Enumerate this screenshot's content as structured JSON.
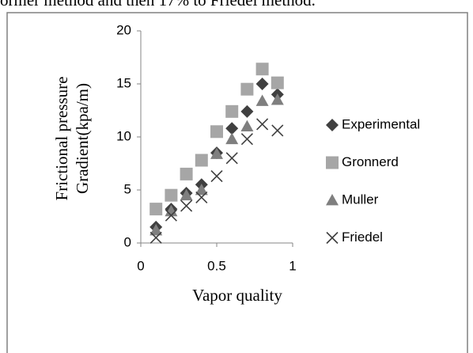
{
  "caption": "ormer method and then 17% to Friedel method.",
  "chart_data": {
    "type": "scatter",
    "ylabel": [
      "Frictional pressure",
      "Gradient(kpa/m)"
    ],
    "xlabel": "Vapor quality",
    "x": [
      0.1,
      0.2,
      0.3,
      0.4,
      0.5,
      0.6,
      0.7,
      0.8,
      0.9
    ],
    "series": [
      {
        "name": "Experimental",
        "color": "#404040",
        "marker": "diamond",
        "values": [
          1.5,
          3.2,
          4.7,
          5.5,
          8.5,
          10.8,
          12.4,
          15,
          14
        ]
      },
      {
        "name": "Gronnerd",
        "color": "#a6a6a6",
        "marker": "square",
        "values": [
          3.2,
          4.5,
          6.5,
          7.8,
          10.5,
          12.4,
          14.5,
          16.4,
          15.1
        ]
      },
      {
        "name": "Muller",
        "color": "#7f7f7f",
        "marker": "triangle",
        "values": [
          1.2,
          3.0,
          4.5,
          5.0,
          8.4,
          9.8,
          11.0,
          13.4,
          13.5
        ]
      },
      {
        "name": "Friedel",
        "color": "#404040",
        "marker": "x",
        "values": [
          0.5,
          2.6,
          3.5,
          4.3,
          6.3,
          8.0,
          9.8,
          11.2,
          10.6
        ]
      }
    ],
    "xlim": [
      0,
      1
    ],
    "xticks": [
      0,
      0.5,
      1
    ],
    "ylim": [
      0,
      20
    ],
    "yticks": [
      0,
      5,
      10,
      15,
      20
    ],
    "grid": false,
    "legend": "right"
  }
}
